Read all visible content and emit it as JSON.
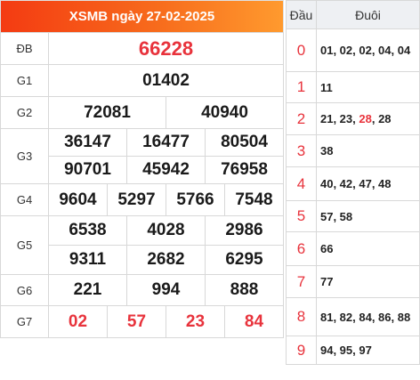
{
  "title": "XSMB ngày 27-02-2025",
  "prizes": {
    "db": {
      "label": "ĐB",
      "numbers": [
        "66228"
      ]
    },
    "g1": {
      "label": "G1",
      "numbers": [
        "01402"
      ]
    },
    "g2": {
      "label": "G2",
      "numbers": [
        "72081",
        "40940"
      ]
    },
    "g3": {
      "label": "G3",
      "numbers": [
        "36147",
        "16477",
        "80504",
        "90701",
        "45942",
        "76958"
      ]
    },
    "g4": {
      "label": "G4",
      "numbers": [
        "9604",
        "5297",
        "5766",
        "7548"
      ]
    },
    "g5": {
      "label": "G5",
      "numbers": [
        "6538",
        "4028",
        "2986",
        "9311",
        "2682",
        "6295"
      ]
    },
    "g6": {
      "label": "G6",
      "numbers": [
        "221",
        "994",
        "888"
      ]
    },
    "g7": {
      "label": "G7",
      "numbers": [
        "02",
        "57",
        "23",
        "84"
      ]
    }
  },
  "loto": {
    "header_dau": "Đầu",
    "header_duoi": "Đuôi",
    "rows": [
      {
        "dau": "0",
        "duoi": [
          [
            "01, 02, 02, 04, 04",
            false
          ]
        ]
      },
      {
        "dau": "1",
        "duoi": [
          [
            "11",
            false
          ]
        ]
      },
      {
        "dau": "2",
        "duoi": [
          [
            "21, 23, ",
            false
          ],
          [
            "28",
            true
          ],
          [
            ", 28",
            false
          ]
        ]
      },
      {
        "dau": "3",
        "duoi": [
          [
            "38",
            false
          ]
        ]
      },
      {
        "dau": "4",
        "duoi": [
          [
            "40, 42, 47, 48",
            false
          ]
        ]
      },
      {
        "dau": "5",
        "duoi": [
          [
            "57, 58",
            false
          ]
        ]
      },
      {
        "dau": "6",
        "duoi": [
          [
            "66",
            false
          ]
        ]
      },
      {
        "dau": "7",
        "duoi": [
          [
            "77",
            false
          ]
        ]
      },
      {
        "dau": "8",
        "duoi": [
          [
            "81, 82, 84, 86, 88",
            false
          ]
        ]
      },
      {
        "dau": "9",
        "duoi": [
          [
            "94, 95, 97",
            false
          ]
        ]
      }
    ]
  },
  "colors": {
    "header_gradient_start": "#f43b12",
    "header_gradient_end": "#ff9a2e",
    "highlight": "#e8333c"
  }
}
